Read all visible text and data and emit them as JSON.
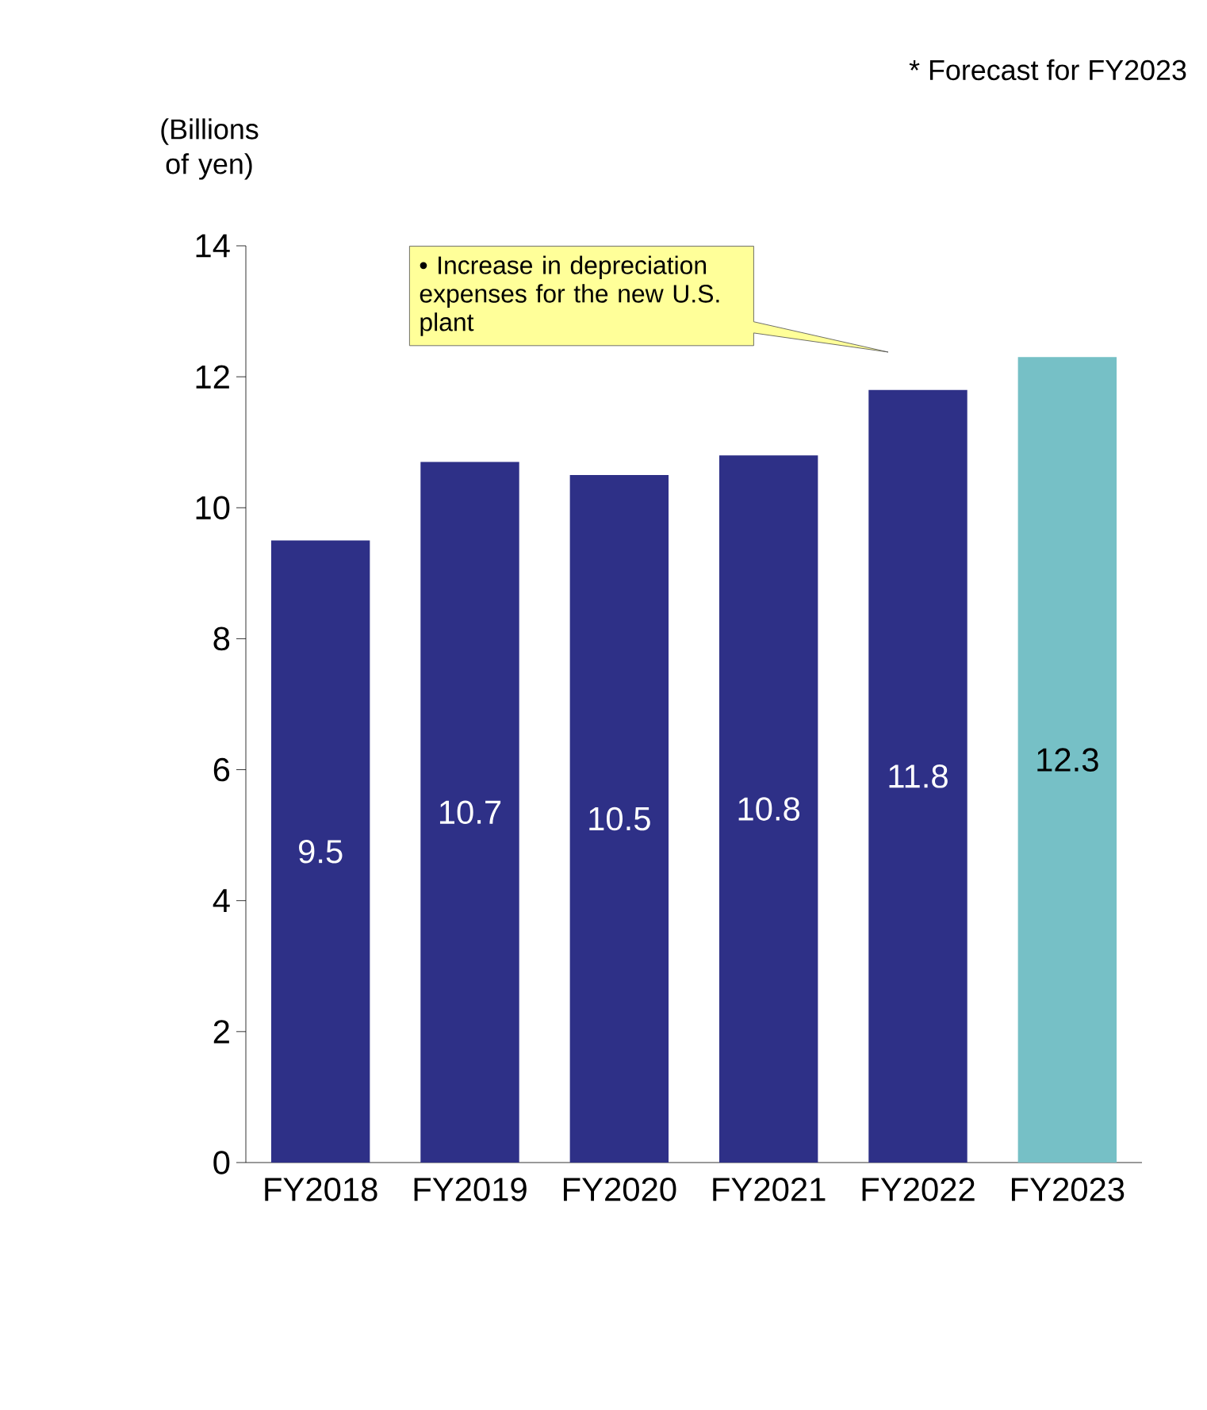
{
  "chart_data": {
    "type": "bar",
    "ylabel": "(Billions of yen)",
    "categories": [
      "FY2018",
      "FY2019",
      "FY2020",
      "FY2021",
      "FY2022",
      "FY2023"
    ],
    "values": [
      9.5,
      10.7,
      10.5,
      10.8,
      11.8,
      12.3
    ],
    "colors": [
      "#2e3087",
      "#2e3087",
      "#2e3087",
      "#2e3087",
      "#2e3087",
      "#76c0c6"
    ],
    "ylim": [
      0,
      14
    ],
    "yticks": [
      0,
      2,
      4,
      6,
      8,
      10,
      12,
      14
    ],
    "data_labels": true,
    "grid": false,
    "annotations": [
      "* Forecast for FY2023",
      "• Increase in depreciation expenses for the new U.S. plant"
    ]
  }
}
